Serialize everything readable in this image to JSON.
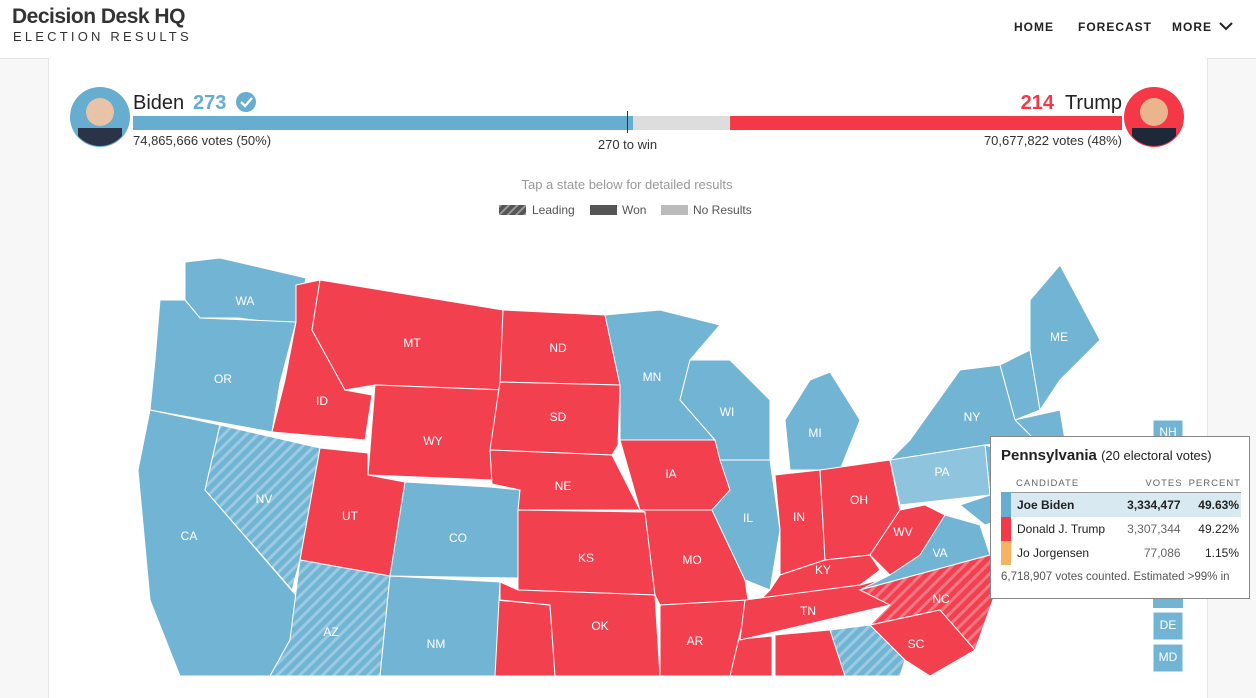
{
  "header": {
    "logo": "Decision Desk HQ",
    "subtitle": "ELECTION RESULTS",
    "nav": [
      "HOME",
      "FORECAST",
      "MORE"
    ]
  },
  "race": {
    "win_label": "270 to win",
    "win_value": 270,
    "candidates": [
      {
        "name": "Biden",
        "electoral": 273,
        "votes_label": "74,865,666 votes (50%)",
        "color": "#66add0"
      },
      {
        "name": "Trump",
        "electoral": 214,
        "votes_label": "70,677,822 votes (48%)",
        "color": "#f53847"
      }
    ],
    "no_result_color": "#dddddd"
  },
  "legend": {
    "hint": "Tap a state below for detailed results",
    "items": [
      "Leading",
      "Won",
      "No Results"
    ]
  },
  "states": [
    {
      "label": "WA",
      "color": "#72b4d4"
    },
    {
      "label": "OR",
      "color": "#72b4d4"
    },
    {
      "label": "CA",
      "color": "#72b4d4"
    },
    {
      "label": "NV",
      "color": "#72b4d4",
      "leading": true
    },
    {
      "label": "ID",
      "color": "#f2404f"
    },
    {
      "label": "MT",
      "color": "#f2404f"
    },
    {
      "label": "WY",
      "color": "#f2404f"
    },
    {
      "label": "UT",
      "color": "#f2404f"
    },
    {
      "label": "CO",
      "color": "#72b4d4"
    },
    {
      "label": "AZ",
      "color": "#72b4d4",
      "leading": true
    },
    {
      "label": "NM",
      "color": "#72b4d4"
    },
    {
      "label": "ND",
      "color": "#f2404f"
    },
    {
      "label": "SD",
      "color": "#f2404f"
    },
    {
      "label": "NE",
      "color": "#f2404f"
    },
    {
      "label": "KS",
      "color": "#f2404f"
    },
    {
      "label": "OK",
      "color": "#f2404f"
    },
    {
      "label": "MN",
      "color": "#72b4d4"
    },
    {
      "label": "IA",
      "color": "#f2404f"
    },
    {
      "label": "MO",
      "color": "#f2404f"
    },
    {
      "label": "AR",
      "color": "#f2404f"
    },
    {
      "label": "WI",
      "color": "#72b4d4"
    },
    {
      "label": "IL",
      "color": "#72b4d4"
    },
    {
      "label": "MI",
      "color": "#72b4d4"
    },
    {
      "label": "IN",
      "color": "#f2404f"
    },
    {
      "label": "OH",
      "color": "#f2404f"
    },
    {
      "label": "KY",
      "color": "#f2404f"
    },
    {
      "label": "TN",
      "color": "#f2404f"
    },
    {
      "label": "WV",
      "color": "#f2404f"
    },
    {
      "label": "VA",
      "color": "#72b4d4"
    },
    {
      "label": "NC",
      "color": "#f2404f",
      "leading": true
    },
    {
      "label": "SC",
      "color": "#f2404f"
    },
    {
      "label": "PA",
      "color": "#8fc4de"
    },
    {
      "label": "NY",
      "color": "#72b4d4"
    },
    {
      "label": "ME",
      "color": "#72b4d4"
    },
    {
      "label": "NH",
      "color": "#72b4d4"
    },
    {
      "label": "DE",
      "color": "#72b4d4"
    },
    {
      "label": "MD",
      "color": "#72b4d4"
    }
  ],
  "tooltip": {
    "state": "Pennsylvania",
    "electoral": "(20 electoral votes)",
    "columns": [
      "CANDIDATE",
      "VOTES",
      "PERCENT"
    ],
    "rows": [
      {
        "name": "Joe Biden",
        "votes": "3,334,477",
        "percent": "49.63%",
        "color": "#66add0"
      },
      {
        "name": "Donald J. Trump",
        "votes": "3,307,344",
        "percent": "49.22%",
        "color": "#f53847"
      },
      {
        "name": "Jo Jorgensen",
        "votes": "77,086",
        "percent": "1.15%",
        "color": "#f5b462"
      }
    ],
    "footer": "6,718,907 votes counted. Estimated >99% in"
  }
}
